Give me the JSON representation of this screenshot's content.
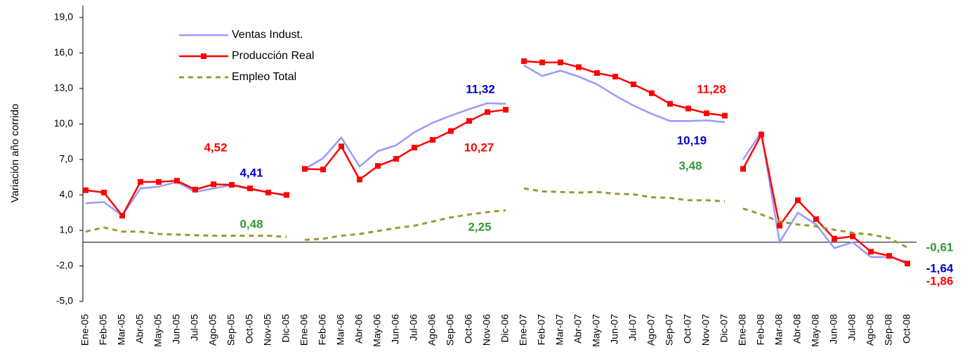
{
  "chart_data": {
    "type": "line",
    "y_label": "Variación año corrido",
    "categories": [
      "Ene-05",
      "Feb-05",
      "Mar-05",
      "Abr-05",
      "May-05",
      "Jun-05",
      "Jul-05",
      "Ago-05",
      "Sep-05",
      "Oct-05",
      "Nov-05",
      "Dic-05",
      "Ene-06",
      "Feb-06",
      "Mar-06",
      "Abr-06",
      "May-06",
      "Jun-06",
      "Jul-06",
      "Ago-06",
      "Sep-06",
      "Oct-06",
      "Nov-06",
      "Dic-06",
      "Ene-07",
      "Feb-07",
      "Mar-07",
      "Abr-07",
      "May-07",
      "Jun-07",
      "Jul-07",
      "Ago-07",
      "Sep-07",
      "Oct-07",
      "Nov-07",
      "Dic-07",
      "Ene-08",
      "Feb-08",
      "Mar-08",
      "Abr-08",
      "May-08",
      "Jun-08",
      "Jul-08",
      "Ago-08",
      "Sep-08",
      "Oct-08"
    ],
    "series": [
      {
        "name": "Ventas Indust.",
        "color": "#9999ff",
        "style": "solid",
        "markers": false,
        "values": [
          3.3,
          3.4,
          2.25,
          4.55,
          4.7,
          5.1,
          4.25,
          4.55,
          4.85,
          4.45,
          4.25,
          3.9,
          6.2,
          7.1,
          8.85,
          6.4,
          7.7,
          8.2,
          9.3,
          10.1,
          10.7,
          11.25,
          11.75,
          11.7,
          14.95,
          14.05,
          14.5,
          14.0,
          13.35,
          12.4,
          11.55,
          10.85,
          10.25,
          10.25,
          10.3,
          10.15,
          7.0,
          9.3,
          0.0,
          2.5,
          1.5,
          -0.5,
          0.0,
          -1.25,
          -1.25,
          -1.65
        ]
      },
      {
        "name": "Producción Real",
        "color": "#ff0000",
        "style": "solid",
        "markers": true,
        "values": [
          4.4,
          4.2,
          2.25,
          5.1,
          5.1,
          5.2,
          4.45,
          4.9,
          4.85,
          4.55,
          4.2,
          4.0,
          6.2,
          6.15,
          8.1,
          5.3,
          6.45,
          7.05,
          8.0,
          8.65,
          9.4,
          10.25,
          11.0,
          11.2,
          15.3,
          15.2,
          15.2,
          14.8,
          14.3,
          14.0,
          13.35,
          12.6,
          11.7,
          11.3,
          10.9,
          10.7,
          6.2,
          9.1,
          1.4,
          3.55,
          1.95,
          0.3,
          0.5,
          -0.8,
          -1.15,
          -1.8
        ]
      },
      {
        "name": "Empleo Total",
        "color": "#999933",
        "style": "dashed",
        "markers": false,
        "values": [
          0.9,
          1.25,
          0.9,
          0.9,
          0.7,
          0.65,
          0.6,
          0.55,
          0.55,
          0.55,
          0.55,
          0.45,
          0.2,
          0.3,
          0.55,
          0.7,
          0.95,
          1.2,
          1.4,
          1.75,
          2.1,
          2.35,
          2.55,
          2.7,
          4.55,
          4.3,
          4.25,
          4.2,
          4.25,
          4.1,
          4.05,
          3.8,
          3.75,
          3.55,
          3.55,
          3.45,
          2.85,
          2.35,
          1.75,
          1.5,
          1.35,
          1.05,
          0.8,
          0.65,
          0.35,
          -0.45
        ]
      }
    ],
    "ylim": [
      -5,
      20
    ],
    "yticks": [
      {
        "value": -5,
        "label": "-5,0"
      },
      {
        "value": -2,
        "label": "-2,0"
      },
      {
        "value": 1,
        "label": "1,0"
      },
      {
        "value": 4,
        "label": "4,0"
      },
      {
        "value": 7,
        "label": "7,0"
      },
      {
        "value": 10,
        "label": "10,0"
      },
      {
        "value": 13,
        "label": "13,0"
      },
      {
        "value": 16,
        "label": "16,0"
      },
      {
        "value": 19,
        "label": "19,0"
      }
    ],
    "legend": "upper left",
    "annotations": [
      {
        "text": "4,52",
        "color": "#ff0000"
      },
      {
        "text": "4,41",
        "color": "#0000cc"
      },
      {
        "text": "0,48",
        "color": "#339933"
      },
      {
        "text": "11,32",
        "color": "#0000cc"
      },
      {
        "text": "10,27",
        "color": "#ff0000"
      },
      {
        "text": "2,25",
        "color": "#339933"
      },
      {
        "text": "11,28",
        "color": "#ff0000"
      },
      {
        "text": "10,19",
        "color": "#0000cc"
      },
      {
        "text": "3,48",
        "color": "#339933"
      },
      {
        "text": "-0,61",
        "color": "#339933"
      },
      {
        "text": "-1,64",
        "color": "#0000cc"
      },
      {
        "text": "-1,86",
        "color": "#ff0000"
      }
    ]
  }
}
